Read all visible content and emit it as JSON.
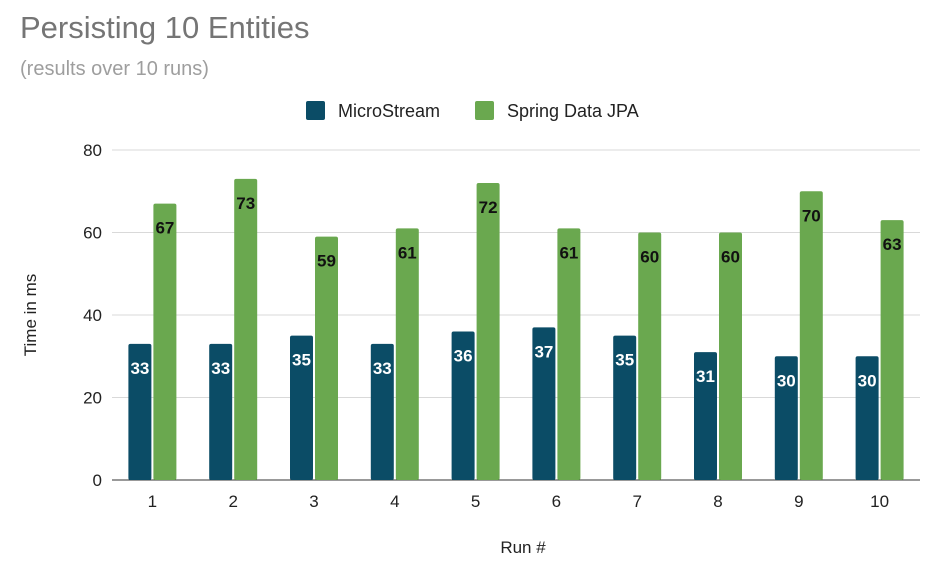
{
  "chart_data": {
    "type": "bar",
    "title": "Persisting 10 Entities",
    "subtitle": "(results over 10 runs)",
    "xlabel": "Run #",
    "ylabel": "Time in ms",
    "ylim": [
      0,
      80
    ],
    "yticks": [
      0,
      20,
      40,
      60,
      80
    ],
    "grid": true,
    "legend_position": "top",
    "categories": [
      "1",
      "2",
      "3",
      "4",
      "5",
      "6",
      "7",
      "8",
      "9",
      "10"
    ],
    "series": [
      {
        "name": "MicroStream",
        "color": "#0b4c66",
        "label_color": "#ffffff",
        "values": [
          33,
          33,
          35,
          33,
          36,
          37,
          35,
          31,
          30,
          30
        ]
      },
      {
        "name": "Spring Data JPA",
        "color": "#6aa84f",
        "label_color": "#111111",
        "values": [
          67,
          73,
          59,
          61,
          72,
          61,
          60,
          60,
          70,
          63
        ]
      }
    ]
  }
}
